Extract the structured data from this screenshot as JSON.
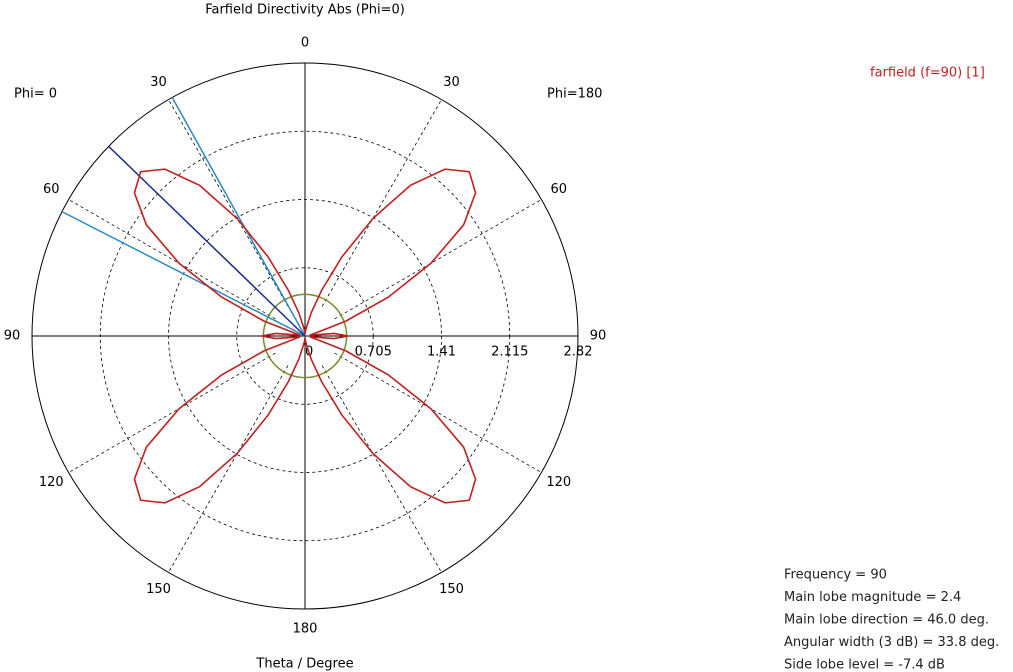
{
  "chart_data": {
    "type": "polar",
    "title": "Farfield Directivity Abs (Phi=0)",
    "axis_label": "Theta / Degree",
    "left_label": "Phi=  0",
    "right_label": "Phi=180",
    "angle_ticks": [
      0,
      30,
      60,
      90,
      120,
      150,
      180
    ],
    "rlim": [
      0,
      2.82
    ],
    "rticks": [
      0,
      0.705,
      1.41,
      2.115,
      2.82
    ],
    "x": [
      -180,
      -175,
      -170,
      -165,
      -160,
      -155,
      -150,
      -145,
      -140,
      -135,
      -130,
      -125,
      -120,
      -115,
      -110,
      -105,
      -100,
      -95,
      -90,
      -85,
      -80,
      -75,
      -70,
      -65,
      -60,
      -55,
      -50,
      -45,
      -40,
      -35,
      -30,
      -25,
      -20,
      -15,
      -10,
      -5,
      0,
      5,
      10,
      15,
      20,
      25,
      30,
      35,
      40,
      45,
      50,
      55,
      60,
      65,
      70,
      75,
      80,
      85,
      90,
      95,
      100,
      105,
      110,
      115,
      120,
      125,
      130,
      135,
      140,
      145,
      150,
      155,
      160,
      165,
      170,
      175,
      180
    ],
    "series": [
      {
        "name": "farfield (f=90) [1]",
        "color": "#c02020",
        "values": [
          0.02,
          0.05,
          0.1,
          0.25,
          0.5,
          0.9,
          1.4,
          1.9,
          2.25,
          2.4,
          2.3,
          2.0,
          1.5,
          0.95,
          0.45,
          0.1,
          0.05,
          0.3,
          0.45,
          0.3,
          0.05,
          0.1,
          0.45,
          0.95,
          1.5,
          2.0,
          2.3,
          2.4,
          2.25,
          1.9,
          1.4,
          0.9,
          0.5,
          0.25,
          0.1,
          0.05,
          0.02,
          0.05,
          0.1,
          0.25,
          0.5,
          0.9,
          1.4,
          1.9,
          2.25,
          2.4,
          2.3,
          2.0,
          1.5,
          0.95,
          0.45,
          0.1,
          0.05,
          0.3,
          0.45,
          0.3,
          0.05,
          0.1,
          0.45,
          0.95,
          1.5,
          2.0,
          2.3,
          2.4,
          2.25,
          1.9,
          1.4,
          0.9,
          0.5,
          0.25,
          0.1,
          0.05,
          0.02
        ]
      }
    ],
    "main_lobe_direction": 46,
    "main_lobe_color": "#1a2a8a",
    "beamwidth_directions": [
      29.1,
      62.9
    ],
    "beamwidth_color": "#2a8ac0",
    "side_lobe_circle": 0.43,
    "side_lobe_color": "#7a8a30",
    "info": [
      "Frequency = 90",
      "Main lobe magnitude =     2.4",
      "Main lobe direction =  46.0 deg.",
      "Angular width (3 dB) =  33.8 deg.",
      "Side lobe level = -7.4 dB"
    ]
  }
}
